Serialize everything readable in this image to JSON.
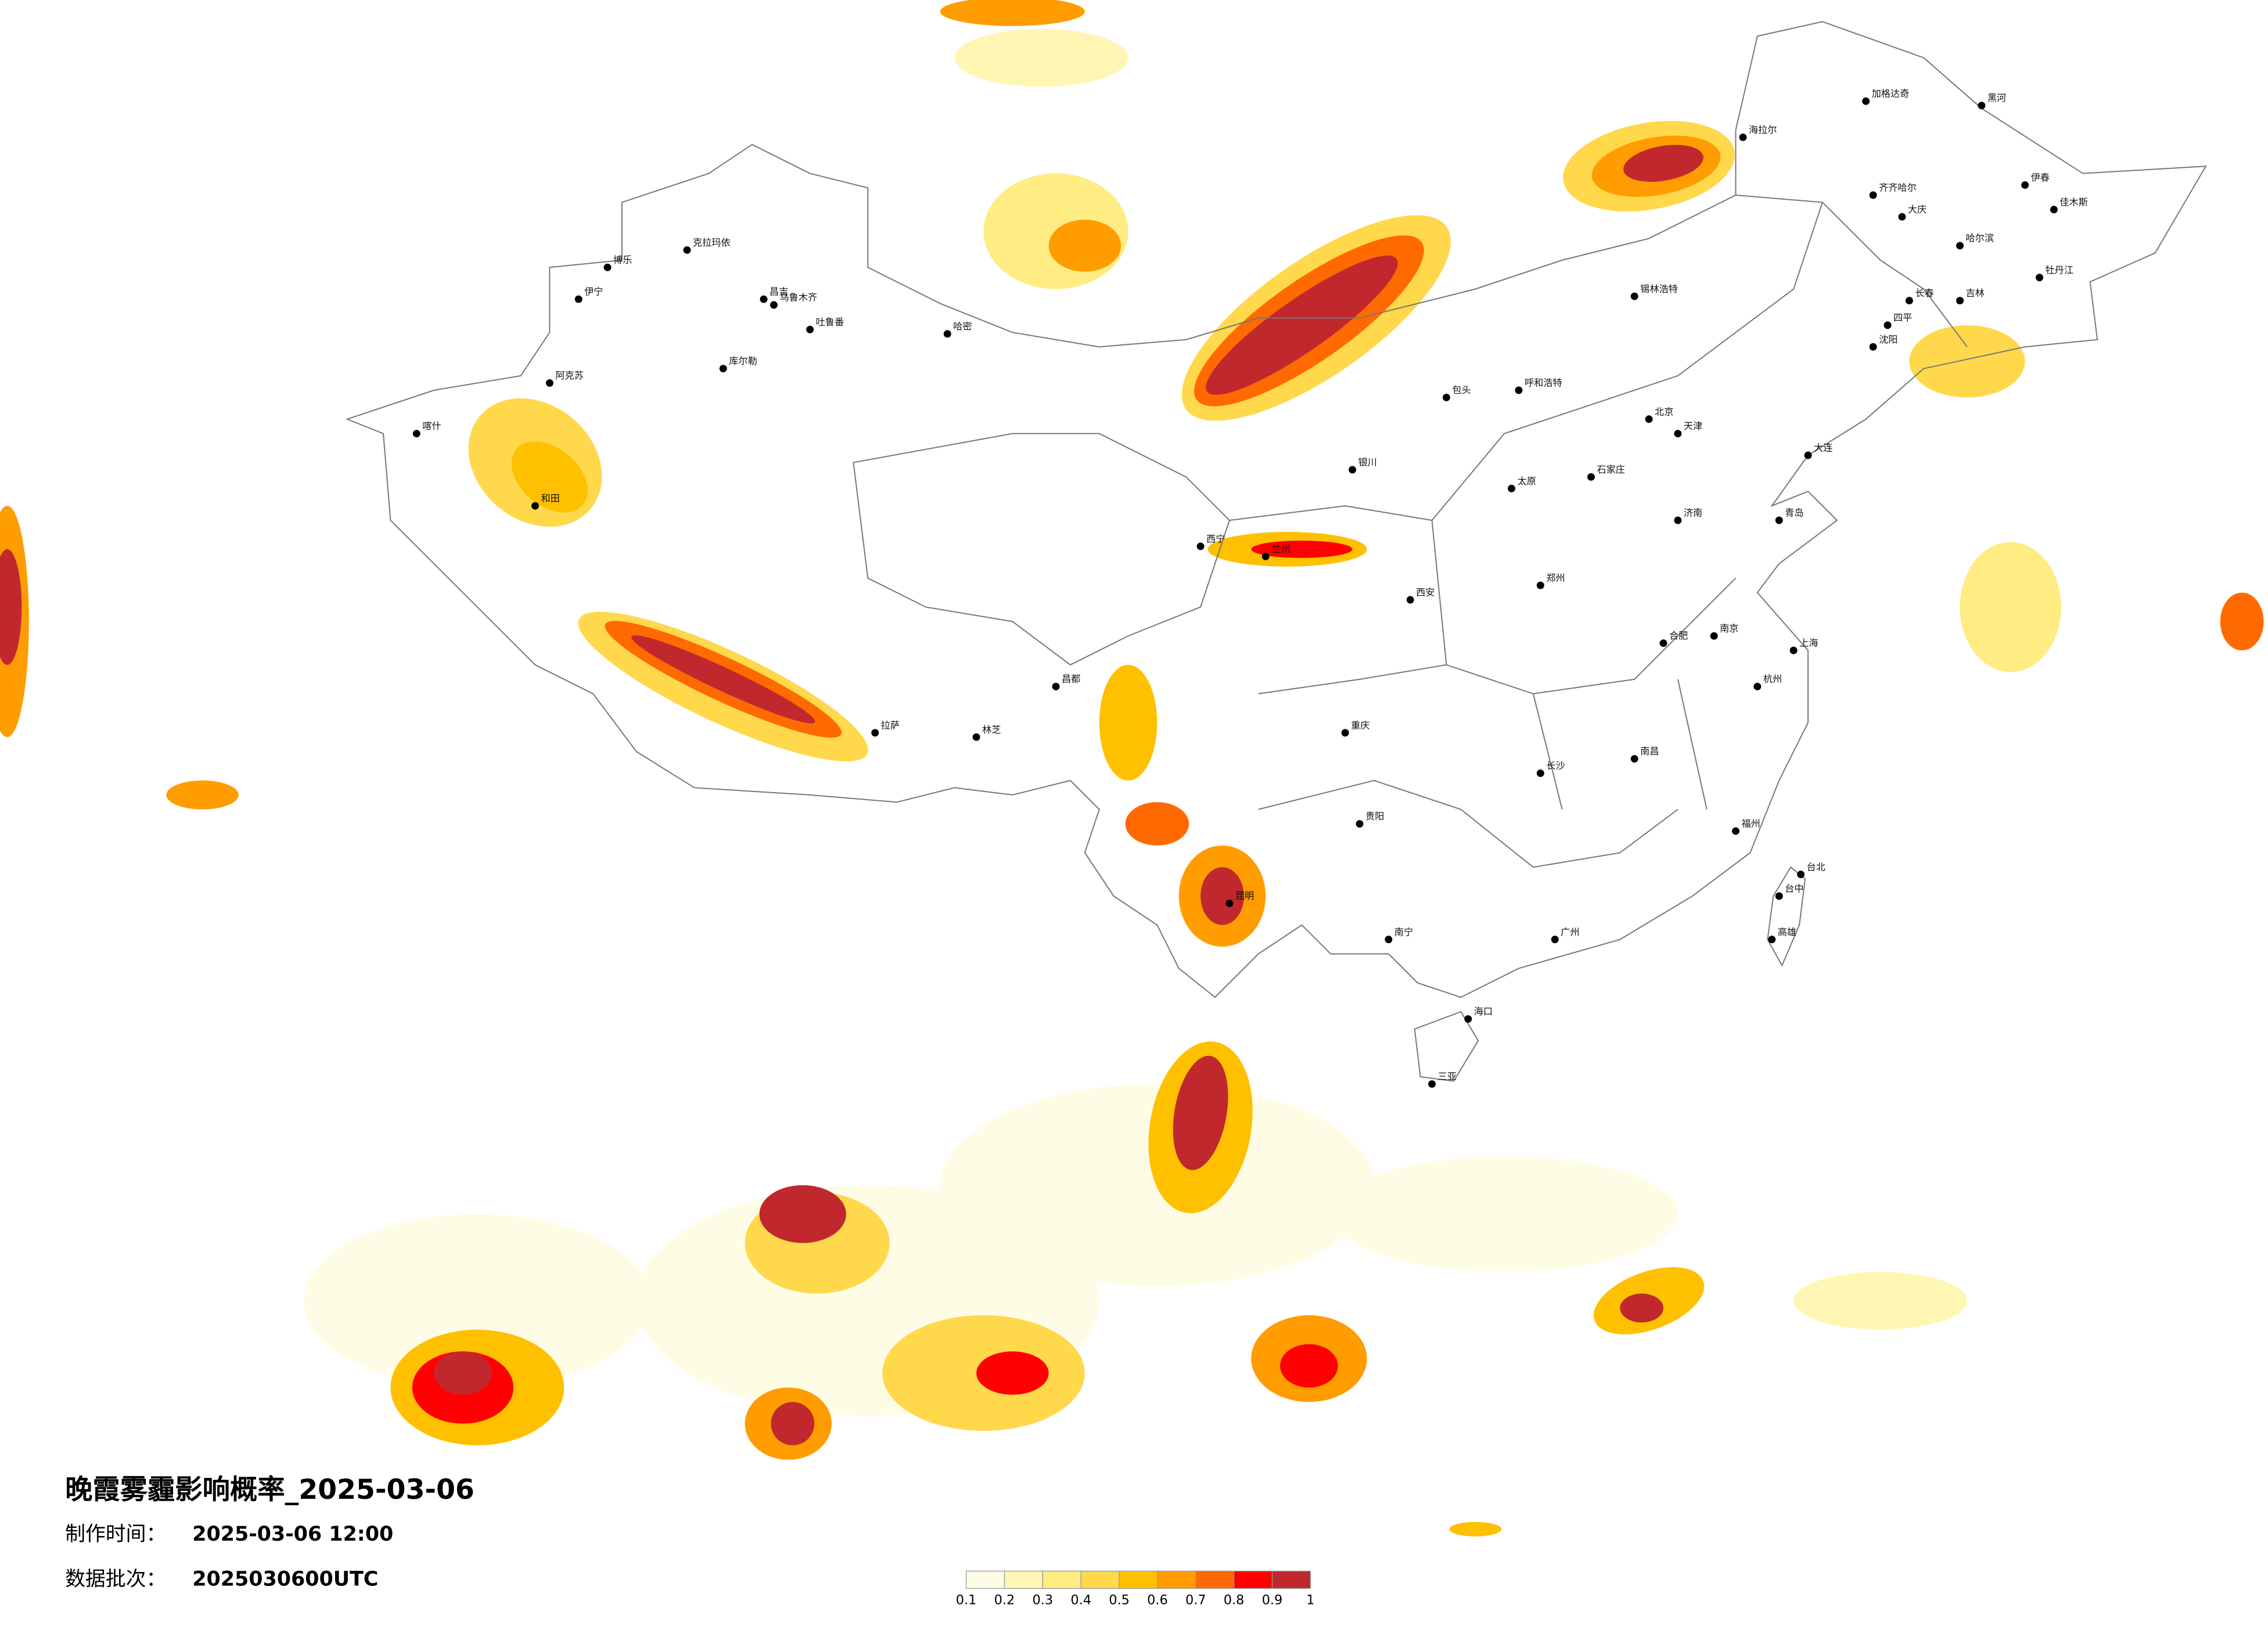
{
  "title": "晚霞雾霾影响概率_2025-03-06",
  "production_time": {
    "label": "制作时间：",
    "value": "2025-03-06 12:00"
  },
  "batch": {
    "label": "数据批次：",
    "value": "2025030600UTC"
  },
  "legend": {
    "ticks": [
      0.1,
      0.2,
      0.3,
      0.4,
      0.5,
      0.6,
      0.7,
      0.8,
      0.9,
      1
    ],
    "colors": [
      "#fffce6",
      "#fff6b4",
      "#ffec82",
      "#ffd84c",
      "#ffc000",
      "#ff9c00",
      "#ff6a00",
      "#ff0000",
      "#c0282e"
    ]
  },
  "cities": [
    "克拉玛依",
    "博乐",
    "伊宁",
    "昌吉",
    "乌鲁木齐",
    "吐鲁番",
    "库尔勒",
    "哈密",
    "阿克苏",
    "喀什",
    "和田",
    "拉萨",
    "林芝",
    "昌都",
    "海拉尔",
    "加格达奇",
    "黑河",
    "伊春",
    "齐齐哈尔",
    "大庆",
    "哈尔滨",
    "佳木斯",
    "牡丹江",
    "长春",
    "吉林",
    "四平",
    "沈阳",
    "大连",
    "锡林浩特",
    "呼和浩特",
    "包头",
    "北京",
    "天津",
    "石家庄",
    "太原",
    "济南",
    "青岛",
    "郑州",
    "西安",
    "兰州",
    "西宁",
    "银川",
    "重庆",
    "贵阳",
    "昆明",
    "南宁",
    "广州",
    "长沙",
    "南昌",
    "合肥",
    "南京",
    "上海",
    "杭州",
    "福州",
    "台北",
    "台中",
    "高雄",
    "海口",
    "三亚"
  ]
}
